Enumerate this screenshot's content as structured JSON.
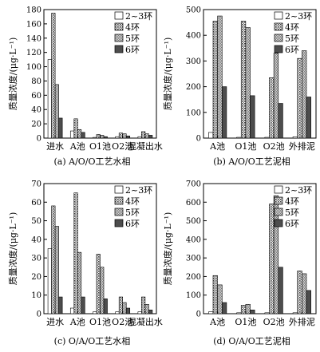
{
  "legend_labels": [
    "2~3环",
    "4环",
    "5环",
    "6环"
  ],
  "chart_data": [
    {
      "type": "bar",
      "caption": "(a) A/O/O工艺水相",
      "ylabel": "质量浓度/(μg·L⁻¹)",
      "ylim": [
        0,
        180
      ],
      "yticks": [
        0,
        20,
        40,
        60,
        80,
        100,
        120,
        140,
        160,
        180
      ],
      "categories": [
        "进水",
        "A池",
        "O1池",
        "O2池",
        "混凝出水"
      ],
      "legend": "top-right",
      "series": [
        {
          "name": "2~3环",
          "values": [
            110,
            10,
            1,
            2,
            2
          ]
        },
        {
          "name": "4环",
          "values": [
            175,
            27,
            5,
            7,
            9
          ]
        },
        {
          "name": "5环",
          "values": [
            75,
            12,
            4,
            6,
            6
          ]
        },
        {
          "name": "6环",
          "values": [
            28,
            8,
            2,
            3,
            4
          ]
        }
      ]
    },
    {
      "type": "bar",
      "caption": "(b) A/O/O工艺泥相",
      "ylabel": "质量浓度/(μg·L⁻¹)",
      "ylim": [
        0,
        500
      ],
      "yticks": [
        0,
        100,
        200,
        300,
        400,
        500
      ],
      "categories": [
        "A池",
        "O1池",
        "O2池",
        "外排泥"
      ],
      "legend": "top-right",
      "series": [
        {
          "name": "2~3环",
          "values": [
            22,
            3,
            3,
            5
          ]
        },
        {
          "name": "4环",
          "values": [
            455,
            455,
            235,
            310
          ]
        },
        {
          "name": "5环",
          "values": [
            475,
            430,
            330,
            340
          ]
        },
        {
          "name": "6环",
          "values": [
            200,
            165,
            135,
            160
          ]
        }
      ]
    },
    {
      "type": "bar",
      "caption": "(c) O/A/O工艺水相",
      "ylabel": "质量浓度/(μg·L⁻¹)",
      "ylim": [
        0,
        70
      ],
      "yticks": [
        0,
        10,
        20,
        30,
        40,
        50,
        60,
        70
      ],
      "categories": [
        "进水",
        "A池",
        "O1池",
        "O2池",
        "混凝出水"
      ],
      "legend": "top-right",
      "series": [
        {
          "name": "2~3环",
          "values": [
            35,
            3,
            1,
            1,
            1
          ]
        },
        {
          "name": "4环",
          "values": [
            58,
            65,
            32,
            9,
            9
          ]
        },
        {
          "name": "5环",
          "values": [
            47,
            33,
            25,
            6,
            5
          ]
        },
        {
          "name": "6环",
          "values": [
            9,
            9,
            8,
            3,
            2
          ]
        }
      ]
    },
    {
      "type": "bar",
      "caption": "(d) O/A/O工艺泥相",
      "ylabel": "质量浓度/(μg·L⁻¹)",
      "ylim": [
        0,
        700
      ],
      "yticks": [
        0,
        100,
        200,
        300,
        400,
        500,
        600,
        700
      ],
      "categories": [
        "A池",
        "O1池",
        "O2池",
        "外排泥"
      ],
      "legend": "top-right",
      "series": [
        {
          "name": "2~3环",
          "values": [
            10,
            5,
            5,
            5
          ]
        },
        {
          "name": "4环",
          "values": [
            205,
            45,
            590,
            230
          ]
        },
        {
          "name": "5环",
          "values": [
            155,
            50,
            635,
            215
          ]
        },
        {
          "name": "6环",
          "values": [
            60,
            20,
            250,
            125
          ]
        }
      ]
    }
  ]
}
